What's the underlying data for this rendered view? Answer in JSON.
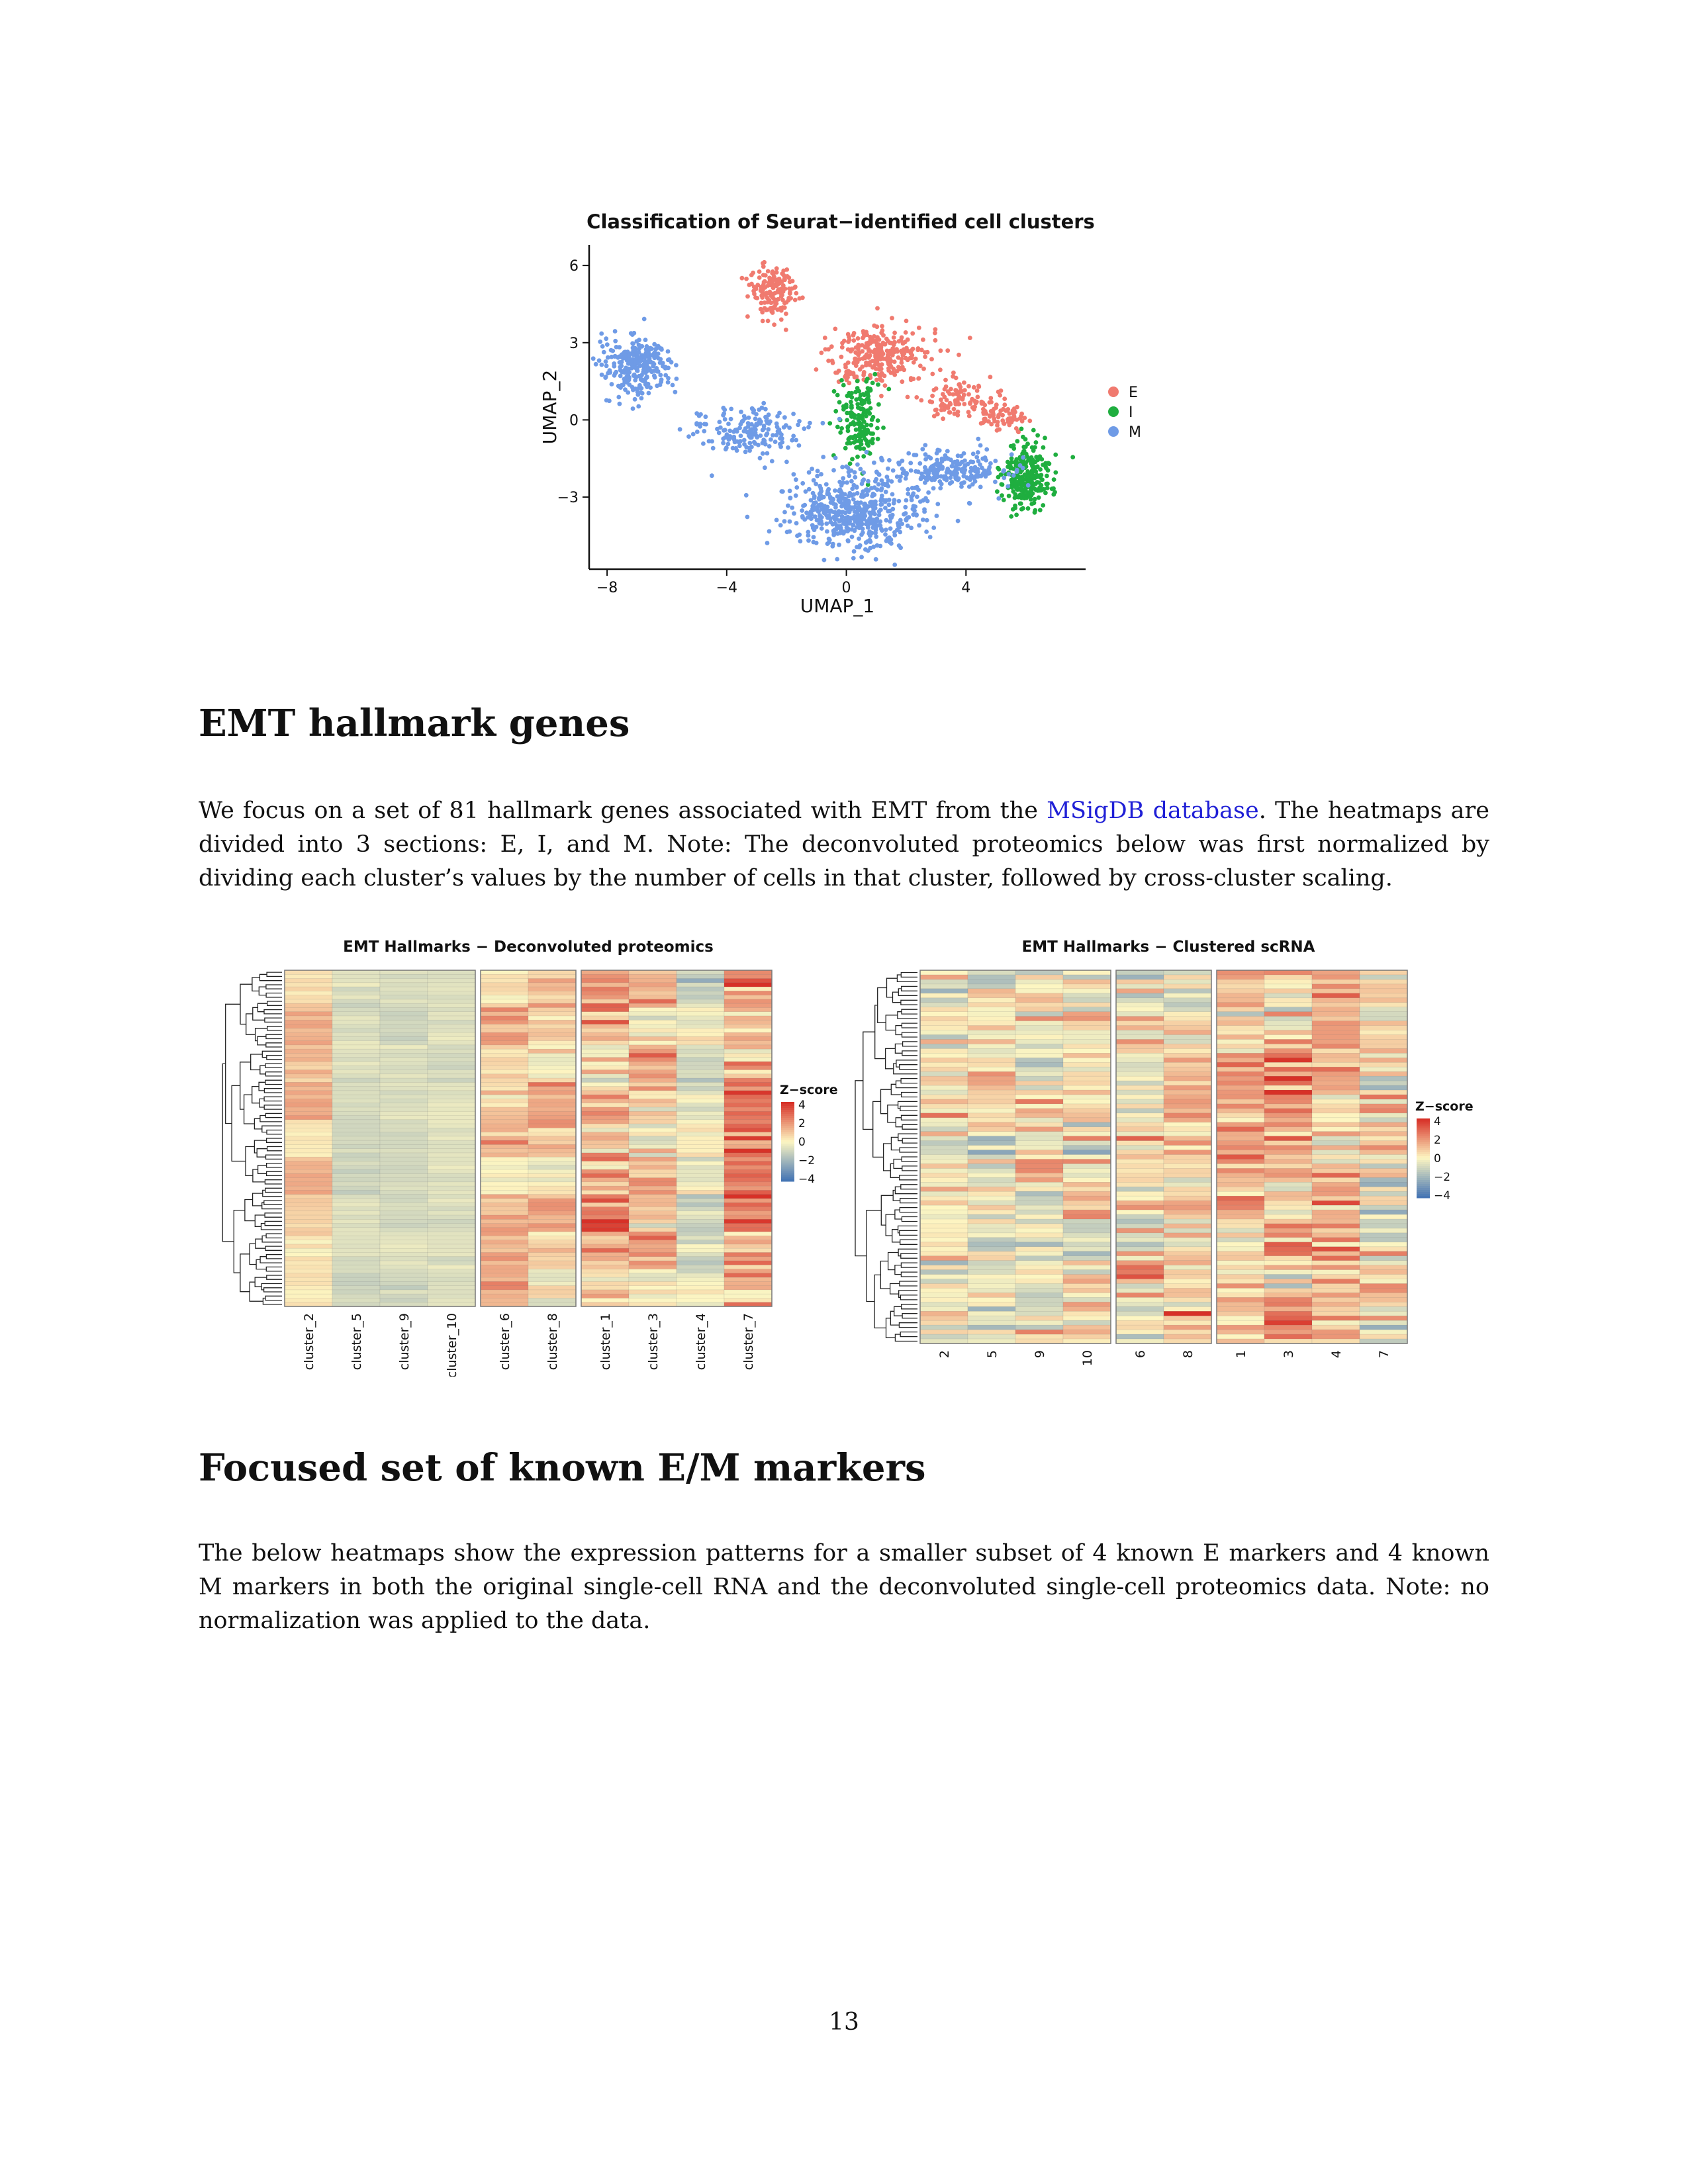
{
  "umap": {
    "title": "Classification of Seurat−identified cell clusters",
    "xlabel": "UMAP_1",
    "ylabel": "UMAP_2",
    "xticks": [
      "−8",
      "−4",
      "0",
      "4"
    ],
    "yticks": [
      "6",
      "3",
      "0",
      "−3"
    ],
    "legend": [
      {
        "label": "E",
        "color": "#f07a6f"
      },
      {
        "label": "I",
        "color": "#1fae3f"
      },
      {
        "label": "M",
        "color": "#6f9be6"
      }
    ]
  },
  "chart_data": [
    {
      "type": "scatter",
      "title": "Classification of Seurat−identified cell clusters",
      "xlabel": "UMAP_1",
      "ylabel": "UMAP_2",
      "xlim": [
        -8.6,
        8.0
      ],
      "ylim": [
        -5.8,
        6.8
      ],
      "legend_position": "right",
      "series": [
        {
          "name": "E",
          "color": "#f07a6f",
          "clusters": [
            {
              "cx": -2.5,
              "cy": 5.0,
              "sx": 0.6,
              "sy": 0.8,
              "n": 150
            },
            {
              "cx": 1.2,
              "cy": 2.5,
              "sx": 1.2,
              "sy": 0.9,
              "n": 280
            },
            {
              "cx": 3.8,
              "cy": 0.8,
              "sx": 1.0,
              "sy": 0.6,
              "n": 110
            },
            {
              "cx": 5.2,
              "cy": 0.1,
              "sx": 0.6,
              "sy": 0.4,
              "n": 60
            }
          ]
        },
        {
          "name": "I",
          "color": "#1fae3f",
          "clusters": [
            {
              "cx": 0.4,
              "cy": 0.0,
              "sx": 0.5,
              "sy": 1.1,
              "n": 170
            },
            {
              "cx": 6.0,
              "cy": -2.2,
              "sx": 0.6,
              "sy": 0.9,
              "n": 260
            }
          ]
        },
        {
          "name": "M",
          "color": "#6f9be6",
          "clusters": [
            {
              "cx": -7.0,
              "cy": 2.1,
              "sx": 0.8,
              "sy": 0.8,
              "n": 270
            },
            {
              "cx": -3.2,
              "cy": -0.5,
              "sx": 1.3,
              "sy": 0.7,
              "n": 180
            },
            {
              "cx": 0.2,
              "cy": -3.5,
              "sx": 1.6,
              "sy": 1.1,
              "n": 560
            },
            {
              "cx": 3.5,
              "cy": -2.0,
              "sx": 1.3,
              "sy": 0.6,
              "n": 230
            }
          ]
        }
      ]
    },
    {
      "type": "heatmap",
      "title": "EMT Hallmarks − Deconvoluted proteomics",
      "columns": [
        "cluster_2",
        "cluster_5",
        "cluster_9",
        "cluster_10",
        "cluster_6",
        "cluster_8",
        "cluster_1",
        "cluster_3",
        "cluster_4",
        "cluster_7"
      ],
      "column_groups": [
        4,
        2,
        4
      ],
      "rows": 81,
      "legend_title": "Z−score",
      "legend_ticks": [
        "4",
        "2",
        "0",
        "−2",
        "−4"
      ],
      "scale_range": [
        -4,
        4
      ]
    },
    {
      "type": "heatmap",
      "title": "EMT Hallmarks − Clustered scRNA",
      "columns": [
        "2",
        "5",
        "9",
        "10",
        "6",
        "8",
        "1",
        "3",
        "4",
        "7"
      ],
      "column_groups": [
        4,
        2,
        4
      ],
      "rows": 81,
      "legend_title": "Z−score",
      "legend_ticks": [
        "4",
        "2",
        "0",
        "−2",
        "−4"
      ],
      "scale_range": [
        -4,
        4
      ]
    }
  ],
  "heatmap_colors": {
    "low": "#4575b4",
    "mid": "#fdf6c2",
    "high": "#d73027"
  },
  "sections": {
    "emt": {
      "heading": "EMT hallmark genes",
      "p_before": "We focus on a set of 81 hallmark genes associated with EMT from the ",
      "link": "MSigDB database",
      "p_line1_after": ". The heatmaps",
      "p_line2": "are divided into 3 sections: E, I, and M. Note: The deconvoluted proteomics below was first normalized by",
      "p_line3": "dividing each cluster’s values by the number of cells in that cluster, followed by cross-cluster scaling."
    },
    "markers": {
      "heading": "Focused set of known E/M markers",
      "p_line1": "The below heatmaps show the expression patterns for a smaller subset of 4 known E markers and 4 known",
      "p_line2": "M markers in both the original single-cell RNA and the deconvoluted single-cell proteomics data. Note: no",
      "p_line3": "normalization was applied to the data."
    }
  },
  "page_number": "13"
}
